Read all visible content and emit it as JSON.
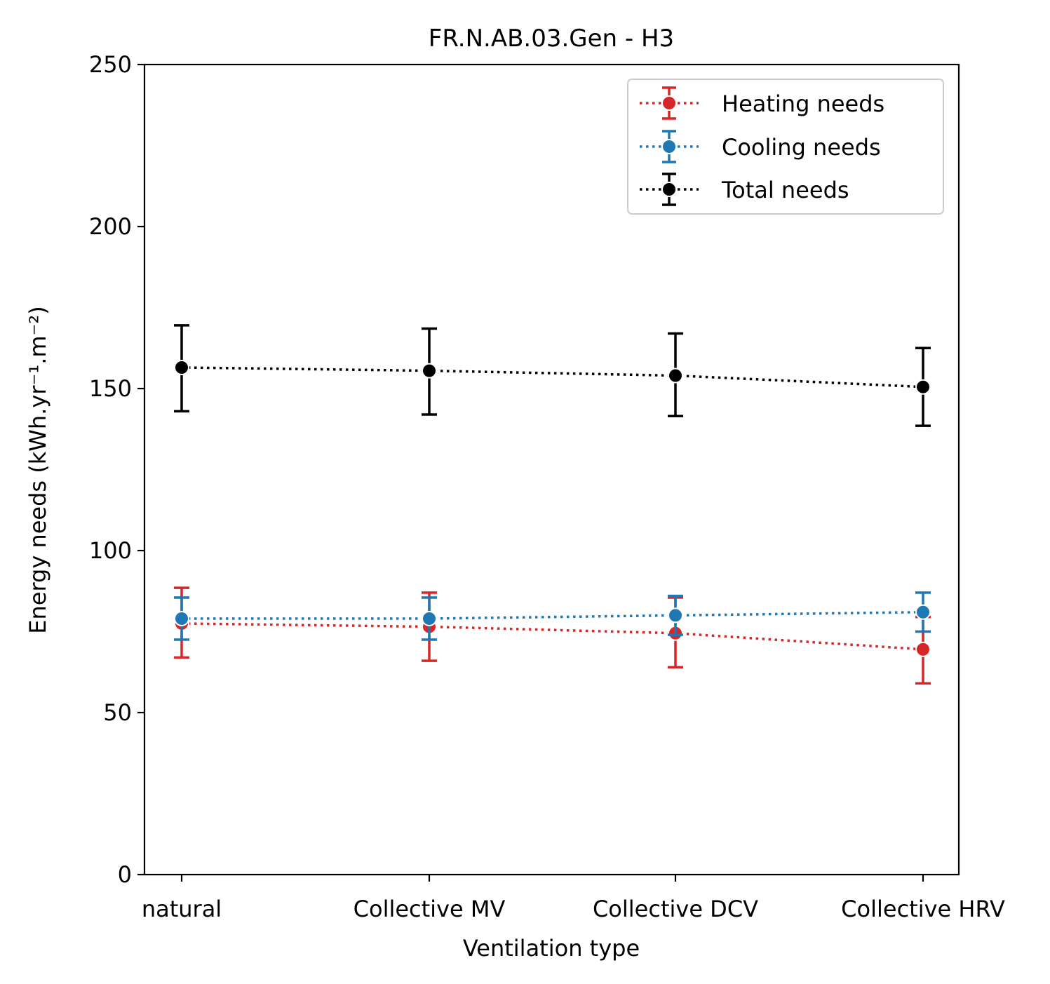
{
  "chart_data": {
    "type": "line",
    "title": "FR.N.AB.03.Gen - H3",
    "xlabel": "Ventilation type",
    "ylabel": "Energy needs (kWh.yr⁻¹.m⁻²)",
    "categories": [
      "natural",
      "Collective MV",
      "Collective DCV",
      "Collective HRV"
    ],
    "ylim": [
      0,
      250
    ],
    "yticks": [
      "0",
      "50",
      "100",
      "150",
      "200",
      "250"
    ],
    "grid": false,
    "legend_position": "top-right",
    "line_style": "dotted",
    "markers": "circle",
    "error_bars": true,
    "series": [
      {
        "name": "Heating needs",
        "color": "#d62728",
        "values": [
          77.5,
          76.5,
          74.5,
          69.5
        ],
        "err_low": [
          67,
          66,
          64,
          59
        ],
        "err_high": [
          88.5,
          87,
          85.5,
          79.5
        ]
      },
      {
        "name": "Cooling needs",
        "color": "#1f77b4",
        "values": [
          79,
          79,
          80,
          81
        ],
        "err_low": [
          72.5,
          72.5,
          74,
          75
        ],
        "err_high": [
          85.5,
          85.5,
          86,
          87
        ]
      },
      {
        "name": "Total needs",
        "color": "#000000",
        "values": [
          156.5,
          155.5,
          154,
          150.5
        ],
        "err_low": [
          143,
          142,
          141.5,
          138.5
        ],
        "err_high": [
          169.5,
          168.5,
          167,
          162.5
        ]
      }
    ]
  }
}
